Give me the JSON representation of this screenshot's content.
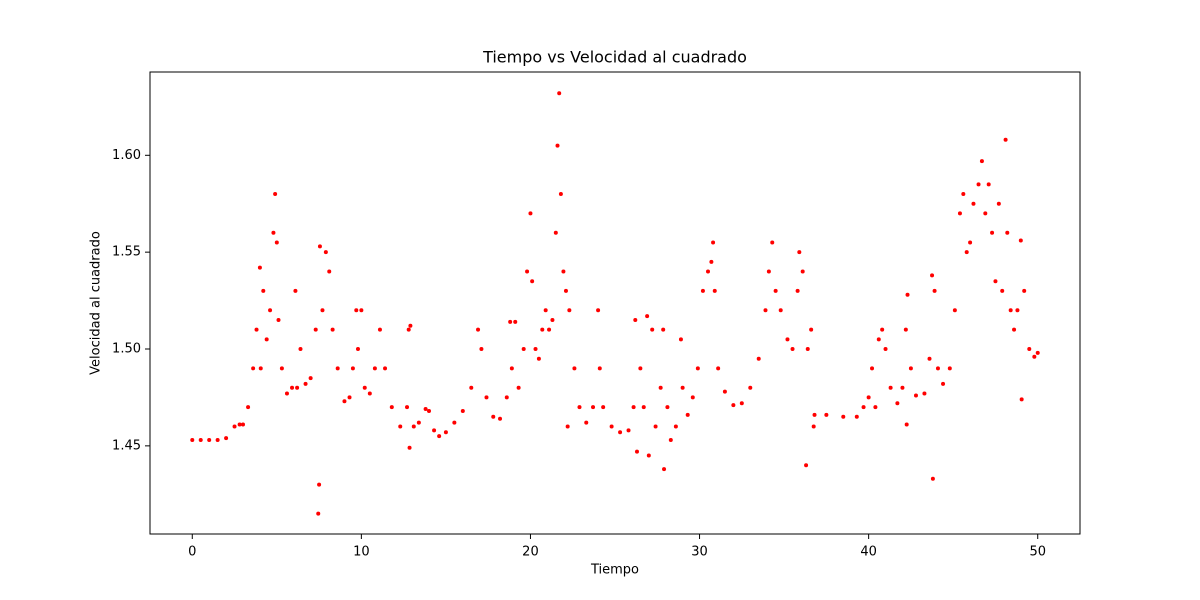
{
  "chart_data": {
    "type": "scatter",
    "title": "Tiempo vs Velocidad al cuadrado",
    "x_label": "Tiempo",
    "y_label": "Velocidad al cuadrado",
    "color": "#ff0000",
    "xlim": [
      -2.5,
      52.5
    ],
    "ylim": [
      1.4045,
      1.643
    ],
    "xticks": [
      0,
      10,
      20,
      30,
      40,
      50
    ],
    "yticks": [
      1.45,
      {
        "value": 1.5,
        "label": "1.50"
      },
      1.55,
      {
        "value": 1.6,
        "label": "1.60"
      }
    ],
    "x": [
      0,
      0.5,
      1,
      1.5,
      2,
      2.5,
      2.8,
      3,
      3.3,
      3.6,
      3.8,
      4,
      4.05,
      4.2,
      4.4,
      4.6,
      4.8,
      4.9,
      5,
      5.1,
      5.3,
      5.6,
      5.9,
      6.1,
      6.2,
      6.4,
      6.7,
      7,
      7.3,
      7.45,
      7.5,
      7.55,
      7.7,
      7.9,
      8.1,
      8.3,
      8.6,
      9,
      9.3,
      9.5,
      9.7,
      9.8,
      10,
      10.2,
      10.5,
      10.8,
      11.1,
      11.4,
      11.8,
      12.3,
      12.7,
      12.8,
      12.85,
      12.9,
      13.1,
      13.4,
      13.8,
      14,
      14.3,
      14.6,
      15,
      15.5,
      16,
      16.5,
      16.9,
      17.1,
      17.4,
      17.8,
      18.2,
      18.6,
      18.8,
      18.9,
      19.1,
      19.3,
      19.6,
      19.8,
      20,
      20.1,
      20.3,
      20.5,
      20.7,
      20.9,
      21.1,
      21.3,
      21.5,
      21.6,
      21.7,
      21.8,
      21.95,
      22.1,
      22.2,
      22.3,
      22.6,
      22.9,
      23.3,
      23.7,
      24,
      24.1,
      24.3,
      24.8,
      25.3,
      25.8,
      26.1,
      26.2,
      26.3,
      26.5,
      26.7,
      26.9,
      27,
      27.2,
      27.4,
      27.7,
      27.85,
      27.9,
      28.1,
      28.3,
      28.6,
      28.9,
      29,
      29.3,
      29.6,
      29.9,
      30.2,
      30.5,
      30.7,
      30.8,
      30.9,
      31.1,
      31.5,
      32,
      32.5,
      33,
      33.5,
      33.9,
      34.1,
      34.3,
      34.5,
      34.8,
      35.2,
      35.5,
      35.8,
      35.9,
      36.1,
      36.3,
      36.4,
      36.6,
      36.75,
      36.8,
      37.5,
      38.5,
      39.3,
      39.7,
      40,
      40.2,
      40.4,
      40.6,
      40.8,
      41,
      41.3,
      41.7,
      42,
      42.2,
      42.25,
      42.3,
      42.5,
      42.8,
      43.3,
      43.6,
      43.75,
      43.8,
      43.9,
      44.1,
      44.4,
      44.8,
      45.1,
      45.4,
      45.6,
      45.8,
      46,
      46.2,
      46.5,
      46.7,
      46.9,
      47.1,
      47.3,
      47.5,
      47.7,
      47.9,
      48.1,
      48.2,
      48.4,
      48.6,
      48.8,
      49,
      49.05,
      49.2,
      49.5,
      49.8,
      50
    ],
    "values": [
      1.453,
      1.453,
      1.453,
      1.453,
      1.454,
      1.46,
      1.461,
      1.461,
      1.47,
      1.49,
      1.51,
      1.542,
      1.49,
      1.53,
      1.505,
      1.52,
      1.56,
      1.58,
      1.555,
      1.515,
      1.49,
      1.477,
      1.48,
      1.53,
      1.48,
      1.5,
      1.482,
      1.485,
      1.51,
      1.415,
      1.43,
      1.553,
      1.52,
      1.55,
      1.54,
      1.51,
      1.49,
      1.473,
      1.475,
      1.49,
      1.52,
      1.5,
      1.52,
      1.48,
      1.477,
      1.49,
      1.51,
      1.49,
      1.47,
      1.46,
      1.47,
      1.51,
      1.449,
      1.512,
      1.46,
      1.462,
      1.469,
      1.468,
      1.458,
      1.455,
      1.457,
      1.462,
      1.468,
      1.48,
      1.51,
      1.5,
      1.475,
      1.465,
      1.464,
      1.475,
      1.514,
      1.49,
      1.514,
      1.48,
      1.5,
      1.54,
      1.57,
      1.535,
      1.5,
      1.495,
      1.51,
      1.52,
      1.51,
      1.515,
      1.56,
      1.605,
      1.632,
      1.58,
      1.54,
      1.53,
      1.46,
      1.52,
      1.49,
      1.47,
      1.462,
      1.47,
      1.52,
      1.49,
      1.47,
      1.46,
      1.457,
      1.458,
      1.47,
      1.515,
      1.447,
      1.49,
      1.47,
      1.517,
      1.445,
      1.51,
      1.46,
      1.48,
      1.51,
      1.438,
      1.47,
      1.453,
      1.46,
      1.505,
      1.48,
      1.466,
      1.475,
      1.49,
      1.53,
      1.54,
      1.545,
      1.555,
      1.53,
      1.49,
      1.478,
      1.471,
      1.472,
      1.48,
      1.495,
      1.52,
      1.54,
      1.555,
      1.53,
      1.52,
      1.505,
      1.5,
      1.53,
      1.55,
      1.54,
      1.44,
      1.5,
      1.51,
      1.46,
      1.466,
      1.466,
      1.465,
      1.465,
      1.47,
      1.475,
      1.49,
      1.47,
      1.505,
      1.51,
      1.5,
      1.48,
      1.472,
      1.48,
      1.51,
      1.461,
      1.528,
      1.49,
      1.476,
      1.477,
      1.495,
      1.538,
      1.433,
      1.53,
      1.49,
      1.482,
      1.49,
      1.52,
      1.57,
      1.58,
      1.55,
      1.555,
      1.575,
      1.585,
      1.597,
      1.57,
      1.585,
      1.56,
      1.535,
      1.575,
      1.53,
      1.608,
      1.56,
      1.52,
      1.51,
      1.52,
      1.556,
      1.474,
      1.53,
      1.5,
      1.496,
      1.498
    ]
  }
}
